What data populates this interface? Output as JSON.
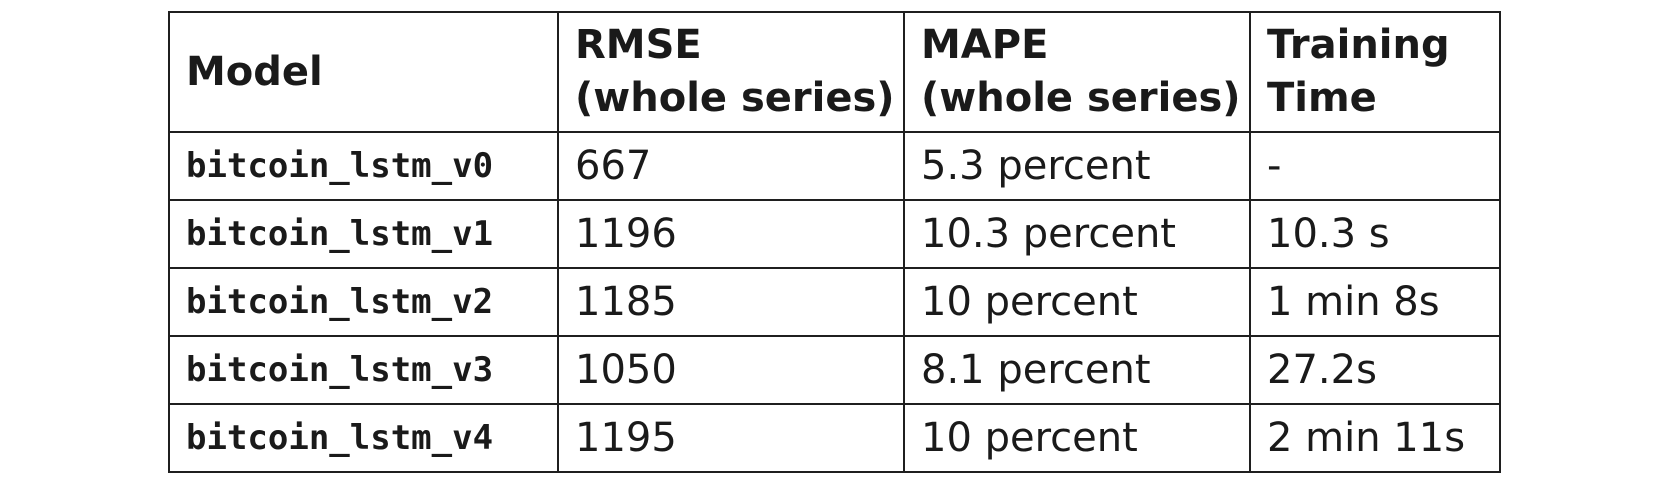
{
  "table": {
    "headers": [
      {
        "line1": "Model",
        "line2": ""
      },
      {
        "line1": "RMSE",
        "line2": "(whole series)"
      },
      {
        "line1": "MAPE",
        "line2": "(whole series)"
      },
      {
        "line1": "Training",
        "line2": "Time"
      }
    ],
    "rows": [
      {
        "model": "bitcoin_lstm_v0",
        "rmse": "667",
        "mape": "5.3 percent",
        "time": "-"
      },
      {
        "model": "bitcoin_lstm_v1",
        "rmse": "1196",
        "mape": "10.3 percent",
        "time": "10.3 s"
      },
      {
        "model": "bitcoin_lstm_v2",
        "rmse": "1185",
        "mape": "10 percent",
        "time": "1 min 8s"
      },
      {
        "model": "bitcoin_lstm_v3",
        "rmse": "1050",
        "mape": "8.1 percent",
        "time": "27.2s"
      },
      {
        "model": "bitcoin_lstm_v4",
        "rmse": "1195",
        "mape": "10 percent",
        "time": "2 min 11s"
      }
    ]
  }
}
